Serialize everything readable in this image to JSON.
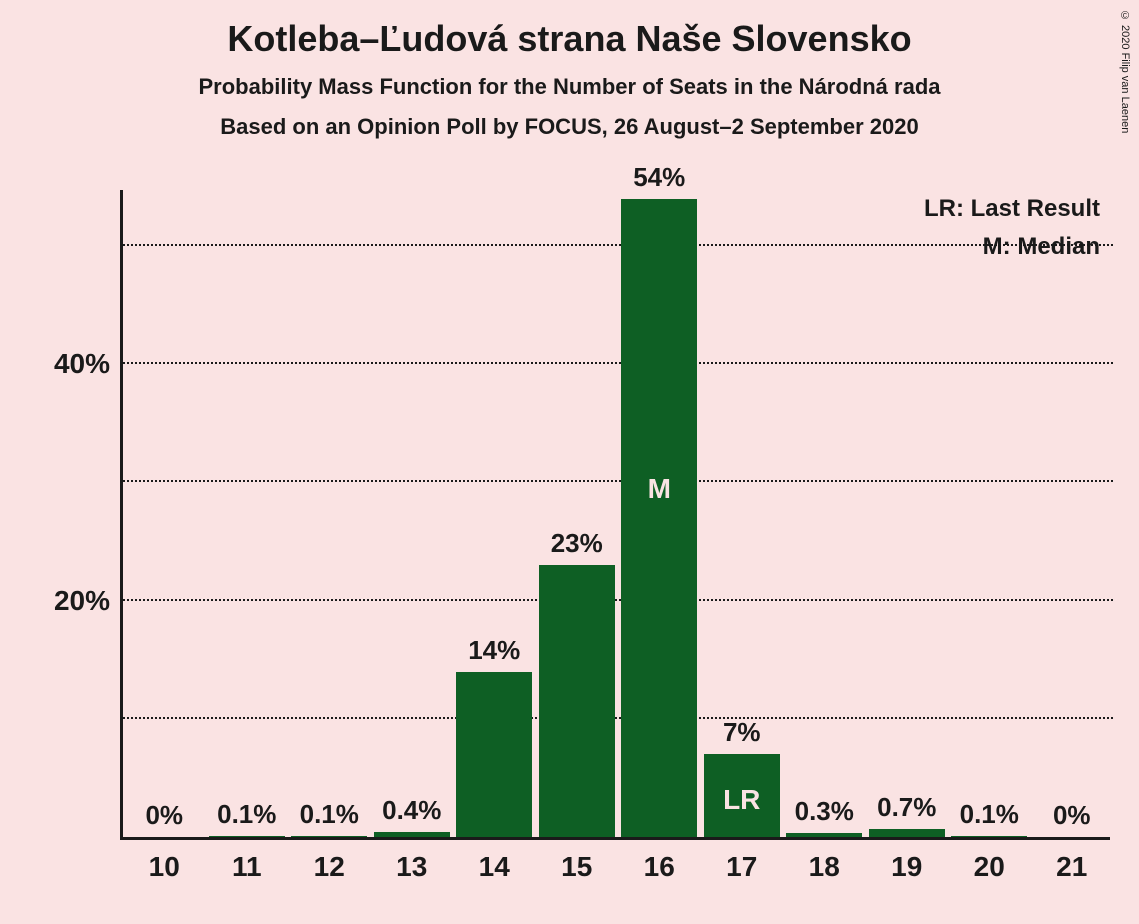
{
  "copyright": "© 2020 Filip van Laenen",
  "title": "Kotleba–Ľudová strana Naše Slovensko",
  "subtitle1": "Probability Mass Function for the Number of Seats in the Národná rada",
  "subtitle2": "Based on an Opinion Poll by FOCUS, 26 August–2 September 2020",
  "legend": {
    "lr": "LR: Last Result",
    "m": "M: Median"
  },
  "chart": {
    "type": "bar",
    "background_color": "#fae3e3",
    "bar_color": "#0e5f24",
    "axis_color": "#1a1a1a",
    "grid_color": "#1a1a1a",
    "inlabel_color": "#fae3e3",
    "label_fontsize": 26,
    "title_fontsize": 36,
    "ylim_max": 55,
    "grid_values": [
      10,
      20,
      30,
      40,
      50
    ],
    "ytick_values": [
      20,
      40
    ],
    "ytick_labels": [
      "20%",
      "40%"
    ],
    "categories": [
      "10",
      "11",
      "12",
      "13",
      "14",
      "15",
      "16",
      "17",
      "18",
      "19",
      "20",
      "21"
    ],
    "values": [
      0,
      0.1,
      0.1,
      0.4,
      14,
      23,
      54,
      7,
      0.3,
      0.7,
      0.1,
      0
    ],
    "value_labels": [
      "0%",
      "0.1%",
      "0.1%",
      "0.4%",
      "14%",
      "23%",
      "54%",
      "7%",
      "0.3%",
      "0.7%",
      "0.1%",
      "0%"
    ],
    "median_index": 6,
    "median_label": "M",
    "lr_index": 7,
    "lr_label": "LR"
  }
}
